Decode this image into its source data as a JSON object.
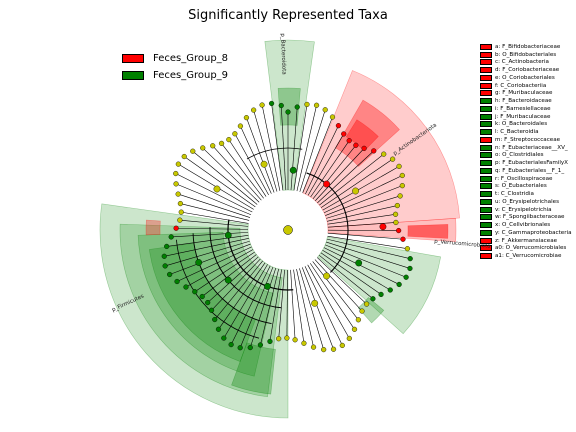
{
  "title": "Significantly Represented Taxa",
  "colors": {
    "Feces_Group_8": "#ff0000",
    "Feces_Group_9": "#008000",
    "neutral": "#c8c800"
  },
  "group_legend": [
    {
      "label": "Feces_Group_8",
      "color": "#ff0000"
    },
    {
      "label": "Feces_Group_9",
      "color": "#008000"
    }
  ],
  "chart_data": {
    "type": "cladogram",
    "title": "Significantly Represented Taxa",
    "groups": [
      "Feces_Group_8",
      "Feces_Group_9"
    ],
    "clade_labels": [
      {
        "text": "p_Bacteroidota",
        "group": "Feces_Group_9"
      },
      {
        "text": "p_Actinobacteriota",
        "group": "Feces_Group_8"
      },
      {
        "text": "p_Verrucomicrobiota",
        "group": "Feces_Group_8"
      },
      {
        "text": "p_Firmicutes",
        "group": "Feces_Group_9"
      }
    ],
    "taxa": [
      {
        "key": "a",
        "name": "F_Bifidobacteriaceae",
        "group": "Feces_Group_8"
      },
      {
        "key": "b",
        "name": "O_Bifidobacteriales",
        "group": "Feces_Group_8"
      },
      {
        "key": "c",
        "name": "C_Actinobacteria",
        "group": "Feces_Group_8"
      },
      {
        "key": "d",
        "name": "F_Coriobacteriaceae",
        "group": "Feces_Group_8"
      },
      {
        "key": "e",
        "name": "O_Coriobacteriales",
        "group": "Feces_Group_8"
      },
      {
        "key": "f",
        "name": "C_Coriobacteriia",
        "group": "Feces_Group_8"
      },
      {
        "key": "g",
        "name": "F_Muribaculaceae",
        "group": "Feces_Group_8"
      },
      {
        "key": "h",
        "name": "F_Bacteroidaceae",
        "group": "Feces_Group_9"
      },
      {
        "key": "i",
        "name": "F_Barnesiellaceae",
        "group": "Feces_Group_9"
      },
      {
        "key": "j",
        "name": "F_Muribaculaceae",
        "group": "Feces_Group_9"
      },
      {
        "key": "k",
        "name": "O_Bacteroidales",
        "group": "Feces_Group_9"
      },
      {
        "key": "l",
        "name": "C_Bacteroidia",
        "group": "Feces_Group_9"
      },
      {
        "key": "m",
        "name": "F_Streptococcaceae",
        "group": "Feces_Group_8"
      },
      {
        "key": "n",
        "name": "F_Eubacteriaceae__XV_",
        "group": "Feces_Group_9"
      },
      {
        "key": "o",
        "name": "O_Clostridiales",
        "group": "Feces_Group_9"
      },
      {
        "key": "p",
        "name": "F_EubacterialesFamilyX",
        "group": "Feces_Group_9"
      },
      {
        "key": "q",
        "name": "F_Eubacteriales__F_1_",
        "group": "Feces_Group_9"
      },
      {
        "key": "r",
        "name": "F_Oscillospiraceae",
        "group": "Feces_Group_9"
      },
      {
        "key": "s",
        "name": "O_Eubacteriales",
        "group": "Feces_Group_9"
      },
      {
        "key": "t",
        "name": "C_Clostridia",
        "group": "Feces_Group_9"
      },
      {
        "key": "u",
        "name": "O_Erysipelotrichales",
        "group": "Feces_Group_9"
      },
      {
        "key": "v",
        "name": "C_Erysipelotrichia",
        "group": "Feces_Group_9"
      },
      {
        "key": "w",
        "name": "F_Spongiibacteraceae",
        "group": "Feces_Group_9"
      },
      {
        "key": "x",
        "name": "O_Cellvibrionales",
        "group": "Feces_Group_9"
      },
      {
        "key": "y",
        "name": "C_Gammaproteobacteria",
        "group": "Feces_Group_9"
      },
      {
        "key": "z",
        "name": "F_Akkermansiaceae",
        "group": "Feces_Group_8"
      },
      {
        "key": "a0",
        "name": "O_Verrucomicrobiales",
        "group": "Feces_Group_8"
      },
      {
        "key": "a1",
        "name": "C_Verrucomicrobiae",
        "group": "Feces_Group_8"
      }
    ]
  }
}
